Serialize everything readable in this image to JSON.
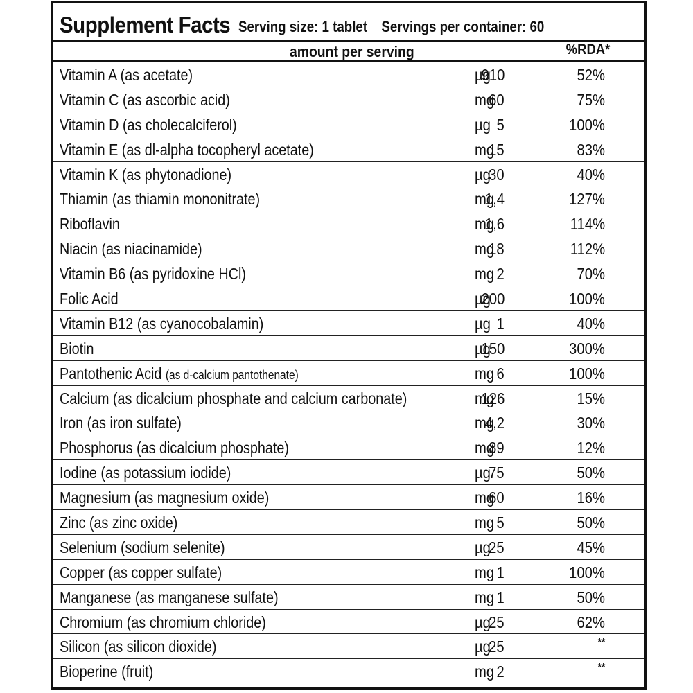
{
  "title": "Supplement Facts",
  "serving_size": "Serving size: 1 tablet",
  "servings_per_container": "Servings per container: 60",
  "columns": {
    "amount": "amount per serving",
    "rda": "%RDA*"
  },
  "rows": [
    {
      "name": "Vitamin A (as acetate)",
      "sub": "",
      "qty": "910",
      "unit": "µg",
      "pct": "52%"
    },
    {
      "name": "Vitamin C (as ascorbic acid)",
      "sub": "",
      "qty": "60",
      "unit": "mg",
      "pct": "75%"
    },
    {
      "name": "Vitamin D (as cholecalciferol)",
      "sub": "",
      "qty": "5",
      "unit": "µg",
      "pct": "100%"
    },
    {
      "name": "Vitamin E (as dl-alpha tocopheryl acetate)",
      "sub": "",
      "qty": "15",
      "unit": "mg",
      "pct": "83%"
    },
    {
      "name": "Vitamin K (as phytonadione)",
      "sub": "",
      "qty": "30",
      "unit": "µg",
      "pct": "40%"
    },
    {
      "name": "Thiamin (as thiamin mononitrate)",
      "sub": "",
      "qty": "1,4",
      "unit": "mg",
      "pct": "127%"
    },
    {
      "name": "Riboflavin",
      "sub": "",
      "qty": "1,6",
      "unit": "mg",
      "pct": "114%"
    },
    {
      "name": "Niacin (as niacinamide)",
      "sub": "",
      "qty": "18",
      "unit": "mg",
      "pct": "112%"
    },
    {
      "name": "Vitamin B6 (as pyridoxine HCl)",
      "sub": "",
      "qty": "2",
      "unit": "mg",
      "pct": "70%"
    },
    {
      "name": "Folic Acid",
      "sub": "",
      "qty": "200",
      "unit": "µg",
      "pct": "100%"
    },
    {
      "name": "Vitamin B12 (as cyanocobalamin)",
      "sub": "",
      "qty": "1",
      "unit": "µg",
      "pct": "40%"
    },
    {
      "name": "Biotin",
      "sub": "",
      "qty": "150",
      "unit": "µg",
      "pct": "300%"
    },
    {
      "name": "Pantothenic Acid ",
      "sub": "(as d-calcium pantothenate)",
      "qty": "6",
      "unit": "mg",
      "pct": "100%"
    },
    {
      "name": "Calcium (as dicalcium phosphate and calcium carbonate)",
      "sub": "",
      "qty": "126",
      "unit": "mg",
      "pct": "15%"
    },
    {
      "name": "Iron (as iron sulfate)",
      "sub": "",
      "qty": "4,2",
      "unit": "mg",
      "pct": "30%"
    },
    {
      "name": "Phosphorus (as dicalcium phosphate)",
      "sub": "",
      "qty": "89",
      "unit": "mg",
      "pct": "12%"
    },
    {
      "name": "Iodine (as potassium iodide)",
      "sub": "",
      "qty": "75",
      "unit": "µg",
      "pct": "50%"
    },
    {
      "name": "Magnesium (as magnesium oxide)",
      "sub": "",
      "qty": "60",
      "unit": "mg",
      "pct": "16%"
    },
    {
      "name": "Zinc (as zinc oxide)",
      "sub": "",
      "qty": "5",
      "unit": "mg",
      "pct": "50%"
    },
    {
      "name": "Selenium (sodium selenite)",
      "sub": "",
      "qty": "25",
      "unit": "µg",
      "pct": "45%"
    },
    {
      "name": "Copper (as copper sulfate)",
      "sub": "",
      "qty": "1",
      "unit": "mg",
      "pct": "100%"
    },
    {
      "name": "Manganese (as manganese sulfate)",
      "sub": "",
      "qty": "1",
      "unit": "mg",
      "pct": "50%"
    },
    {
      "name": "Chromium (as chromium chloride)",
      "sub": "",
      "qty": "25",
      "unit": "µg",
      "pct": "62%"
    },
    {
      "name": "Silicon (as silicon dioxide)",
      "sub": "",
      "qty": "25",
      "unit": "µg",
      "pct": "**"
    },
    {
      "name": "Bioperine (fruit)",
      "sub": "",
      "qty": "2",
      "unit": "mg",
      "pct": "**"
    }
  ]
}
